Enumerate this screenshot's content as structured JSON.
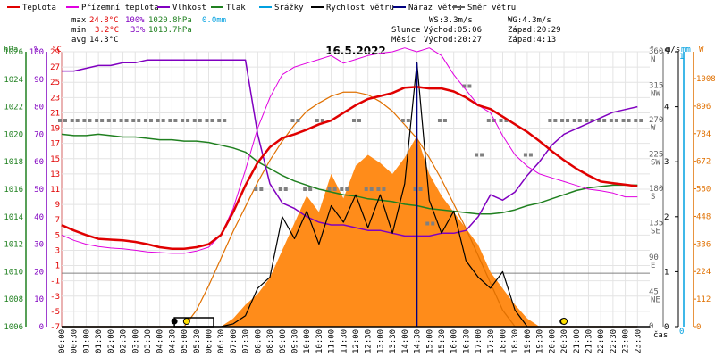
{
  "chart_data": {
    "type": "line",
    "title": "16.5.2022",
    "legend": [
      {
        "label": "Teplota",
        "color": "#e00000"
      },
      {
        "label": "Přízemní teplota",
        "color": "#e000e0"
      },
      {
        "label": "Vlhkost",
        "color": "#8000c0"
      },
      {
        "label": "Tlak",
        "color": "#208020"
      },
      {
        "label": "Srážky",
        "color": "#00a0e0"
      },
      {
        "label": "Rychlost větru",
        "color": "#000000"
      },
      {
        "label": "Náraz větru",
        "color": "#000080"
      },
      {
        "label": "Směr větru",
        "color": "#606060"
      }
    ],
    "stats": {
      "max_label": "max",
      "min_label": "min",
      "avg_label": "avg",
      "max_temp": "24.8°C",
      "max_hum": "100%",
      "max_press": "1020.8hPa",
      "max_rain": "0.0mm",
      "min_temp": "3.2°C",
      "min_hum": "33%",
      "min_press": "1013.7hPa",
      "avg_temp": "14.3°C"
    },
    "info": {
      "ws": "WS:3.3m/s",
      "wg": "WG:4.3m/s",
      "sun_label": "Slunce",
      "sun_rise": "Východ:05:06",
      "sun_set": "Západ:20:29",
      "moon_label": "Měsíc",
      "moon_rise": "Východ:20:27",
      "moon_set": "Západ:4:13"
    },
    "axes": {
      "hpa_unit": "hPa",
      "pct_unit": "%",
      "c_unit": "°C",
      "dir_unit": "°",
      "ms_unit": "m/s",
      "mm_unit": "mm",
      "w_unit": "W",
      "x_unit": "čas",
      "hpa_ticks": [
        "1026",
        "1024",
        "1022",
        "1020",
        "1018",
        "1016",
        "1014",
        "1012",
        "1010",
        "1008",
        "1006"
      ],
      "pct_ticks": [
        "100",
        "90",
        "80",
        "70",
        "60",
        "50",
        "40",
        "30",
        "20",
        "10",
        "0"
      ],
      "c_ticks": [
        "29",
        "27",
        "25",
        "23",
        "21",
        "19",
        "17",
        "15",
        "13",
        "11",
        "9",
        "7",
        "5",
        "3",
        "1",
        "-1",
        "-3",
        "-5",
        "-7"
      ],
      "dir_ticks": [
        {
          "deg": "360",
          "name": "N"
        },
        {
          "deg": "315",
          "name": "NW"
        },
        {
          "deg": "270",
          "name": "W"
        },
        {
          "deg": "225",
          "name": "SW"
        },
        {
          "deg": "180",
          "name": "S"
        },
        {
          "deg": "135",
          "name": "SE"
        },
        {
          "deg": "90",
          "name": "E"
        },
        {
          "deg": "45",
          "name": "NE"
        },
        {
          "deg": "0",
          "name": ""
        }
      ],
      "ms_ticks": [
        "5",
        "4",
        "3",
        "2",
        "1",
        "0"
      ],
      "mm_ticks": [
        "1",
        "0"
      ],
      "w_ticks": [
        "1008",
        "896",
        "784",
        "672",
        "560",
        "448",
        "336",
        "224",
        "112",
        "0"
      ],
      "x_ticks": [
        "00:00",
        "00:30",
        "01:00",
        "01:30",
        "02:00",
        "02:30",
        "03:00",
        "03:30",
        "04:00",
        "04:30",
        "05:00",
        "05:30",
        "06:00",
        "06:30",
        "07:00",
        "07:30",
        "08:00",
        "08:30",
        "09:00",
        "09:30",
        "10:00",
        "10:30",
        "11:00",
        "11:30",
        "12:00",
        "12:30",
        "13:00",
        "13:30",
        "14:00",
        "14:30",
        "15:00",
        "15:30",
        "16:00",
        "16:30",
        "17:00",
        "17:30",
        "18:00",
        "18:30",
        "19:00",
        "19:30",
        "20:00",
        "20:30",
        "21:00",
        "21:30",
        "22:00",
        "22:30",
        "23:00",
        "23:30"
      ]
    },
    "x_hours": [
      0,
      0.5,
      1,
      1.5,
      2,
      2.5,
      3,
      3.5,
      4,
      4.5,
      5,
      5.5,
      6,
      6.5,
      7,
      7.5,
      8,
      8.5,
      9,
      9.5,
      10,
      10.5,
      11,
      11.5,
      12,
      12.5,
      13,
      13.5,
      14,
      14.5,
      15,
      15.5,
      16,
      16.5,
      17,
      17.5,
      18,
      18.5,
      19,
      19.5,
      20,
      20.5,
      21,
      21.5,
      22,
      22.5,
      23,
      23.5
    ],
    "temperature_c": [
      6.3,
      5.6,
      5.0,
      4.5,
      4.4,
      4.3,
      4.1,
      3.8,
      3.4,
      3.2,
      3.2,
      3.4,
      3.8,
      5.0,
      8.0,
      11.5,
      14.5,
      16.5,
      17.7,
      18.2,
      18.8,
      19.5,
      20.0,
      21.0,
      22.0,
      22.8,
      23.2,
      23.6,
      24.3,
      24.4,
      24.2,
      24.2,
      23.8,
      23.0,
      22.0,
      21.5,
      20.5,
      19.5,
      18.5,
      17.3,
      16.0,
      14.8,
      13.7,
      12.8,
      12.0,
      11.8,
      11.6,
      11.4
    ],
    "ground_temp_c": [
      5.0,
      4.3,
      3.8,
      3.5,
      3.3,
      3.2,
      3.0,
      2.8,
      2.7,
      2.6,
      2.6,
      2.9,
      3.4,
      5.0,
      8.5,
      13.5,
      19.0,
      23.0,
      26.0,
      27.0,
      27.5,
      28.0,
      28.5,
      27.5,
      28.0,
      28.5,
      28.8,
      29.0,
      29.5,
      29.0,
      29.5,
      28.5,
      26.0,
      24.0,
      22.0,
      21.0,
      18.0,
      15.5,
      14.0,
      13.0,
      12.5,
      12.0,
      11.5,
      11.0,
      10.8,
      10.5,
      10.0,
      10.0
    ],
    "humidity_pct": [
      93,
      93,
      94,
      95,
      95,
      96,
      96,
      97,
      97,
      97,
      97,
      97,
      97,
      97,
      97,
      97,
      70,
      52,
      45,
      43,
      40,
      38,
      37,
      37,
      36,
      35,
      35,
      34,
      33,
      33,
      33,
      34,
      34,
      35,
      40,
      48,
      46,
      49,
      55,
      60,
      66,
      70,
      72,
      74,
      76,
      78,
      79,
      80
    ],
    "pressure_hpa": [
      1020.0,
      1019.9,
      1019.9,
      1020.0,
      1019.9,
      1019.8,
      1019.8,
      1019.7,
      1019.6,
      1019.6,
      1019.5,
      1019.5,
      1019.4,
      1019.2,
      1019.0,
      1018.7,
      1018.0,
      1017.5,
      1017.0,
      1016.6,
      1016.3,
      1016.0,
      1015.8,
      1015.6,
      1015.5,
      1015.3,
      1015.2,
      1015.1,
      1014.9,
      1014.8,
      1014.6,
      1014.5,
      1014.4,
      1014.3,
      1014.2,
      1014.2,
      1014.3,
      1014.5,
      1014.8,
      1015.0,
      1015.3,
      1015.6,
      1015.9,
      1016.1,
      1016.2,
      1016.3,
      1016.3,
      1016.3
    ],
    "wind_speed_ms": [
      0,
      0,
      0,
      0,
      0,
      0,
      0,
      0,
      0,
      0,
      0,
      0,
      0,
      0,
      0.05,
      0.2,
      0.7,
      0.9,
      2.0,
      1.6,
      2.1,
      1.5,
      2.2,
      1.9,
      2.4,
      1.8,
      2.4,
      1.7,
      2.6,
      4.8,
      2.3,
      1.7,
      2.1,
      1.2,
      0.9,
      0.7,
      1.0,
      0.3,
      0,
      0,
      0,
      0,
      0,
      0,
      0,
      0,
      0,
      0
    ],
    "wind_dir_deg": [
      270,
      270,
      270,
      270,
      270,
      270,
      270,
      270,
      270,
      270,
      270,
      270,
      270,
      270,
      null,
      null,
      180,
      null,
      180,
      270,
      180,
      270,
      180,
      180,
      270,
      180,
      180,
      null,
      270,
      180,
      135,
      270,
      null,
      315,
      225,
      270,
      270,
      null,
      225,
      null,
      270,
      270,
      270,
      270,
      270,
      270,
      270,
      270
    ],
    "solar_w": [
      0,
      0,
      0,
      0,
      0,
      0,
      0,
      0,
      0,
      0,
      0,
      0,
      0,
      0,
      30,
      80,
      120,
      180,
      280,
      380,
      480,
      420,
      560,
      470,
      590,
      630,
      600,
      560,
      620,
      700,
      560,
      480,
      420,
      360,
      300,
      200,
      140,
      80,
      30,
      0,
      0,
      0,
      0,
      0,
      0,
      0,
      0,
      0
    ],
    "solar_max_w": [
      0,
      0,
      0,
      0,
      0,
      0,
      0,
      0,
      0,
      0,
      0,
      60,
      150,
      250,
      350,
      440,
      530,
      610,
      680,
      740,
      790,
      820,
      845,
      860,
      860,
      850,
      825,
      790,
      740,
      690,
      620,
      540,
      450,
      360,
      260,
      160,
      60,
      0,
      0,
      0,
      0,
      0,
      0,
      0,
      0,
      0,
      0,
      0
    ],
    "rain_mm": 0.0,
    "ranges": {
      "temp_c": [
        -7,
        29
      ],
      "humidity_pct": [
        0,
        100
      ],
      "pressure_hpa": [
        1006,
        1026
      ],
      "wind_ms": [
        0,
        5
      ],
      "dir_deg": [
        0,
        360
      ],
      "solar_w": [
        0,
        1008
      ],
      "hours": [
        0,
        24
      ]
    }
  }
}
